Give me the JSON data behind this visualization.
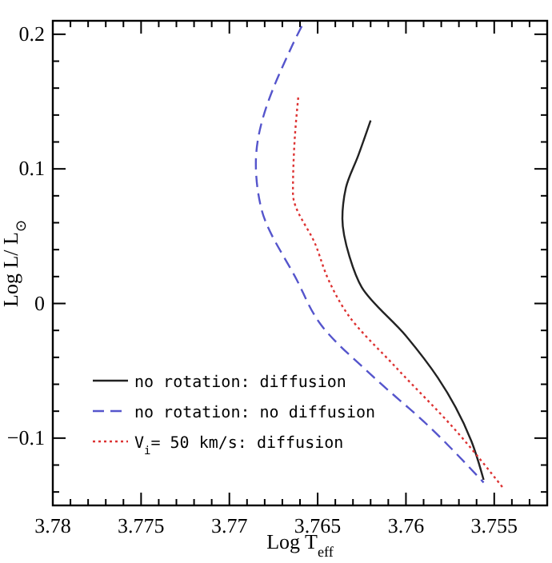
{
  "chart_data": {
    "type": "line",
    "xlabel": "Log T$_{eff}$",
    "ylabel": "Log L/ L$_{⊙}$",
    "xlim": [
      3.78,
      3.752
    ],
    "ylim": [
      -0.15,
      0.21
    ],
    "xticks": [
      3.78,
      {
        "value": 3.779,
        "label": null
      },
      {
        "value": 3.778,
        "label": null
      },
      {
        "value": 3.777,
        "label": null
      },
      {
        "value": 3.776,
        "label": null
      },
      3.775,
      {
        "value": 3.774,
        "label": null
      },
      {
        "value": 3.773,
        "label": null
      },
      {
        "value": 3.772,
        "label": null
      },
      {
        "value": 3.771,
        "label": null
      },
      3.77,
      {
        "value": 3.769,
        "label": null
      },
      {
        "value": 3.768,
        "label": null
      },
      {
        "value": 3.767,
        "label": null
      },
      {
        "value": 3.766,
        "label": null
      },
      3.765,
      {
        "value": 3.764,
        "label": null
      },
      {
        "value": 3.763,
        "label": null
      },
      {
        "value": 3.762,
        "label": null
      },
      {
        "value": 3.761,
        "label": null
      },
      3.76,
      {
        "value": 3.759,
        "label": null
      },
      {
        "value": 3.758,
        "label": null
      },
      {
        "value": 3.757,
        "label": null
      },
      {
        "value": 3.756,
        "label": null
      },
      3.755,
      {
        "value": 3.754,
        "label": null
      },
      {
        "value": 3.753,
        "label": null
      }
    ],
    "yticks": [
      {
        "value": -0.14,
        "label": null
      },
      {
        "value": -0.12,
        "label": null
      },
      -0.1,
      {
        "value": -0.08,
        "label": null
      },
      {
        "value": -0.06,
        "label": null
      },
      {
        "value": -0.04,
        "label": null
      },
      {
        "value": -0.02,
        "label": null
      },
      0,
      {
        "value": 0.02,
        "label": null
      },
      {
        "value": 0.04,
        "label": null
      },
      {
        "value": 0.06,
        "label": null
      },
      {
        "value": 0.08,
        "label": null
      },
      0.1,
      {
        "value": 0.12,
        "label": null
      },
      {
        "value": 0.14,
        "label": null
      },
      {
        "value": 0.16,
        "label": null
      },
      {
        "value": 0.18,
        "label": null
      },
      0.2
    ],
    "legend": "bottom left",
    "grid": false,
    "marker": "none",
    "series": [
      {
        "name": "no rotation: diffusion",
        "color": "#222222",
        "line_style": "solid",
        "x": [
          3.762,
          3.7627,
          3.7634,
          3.7636,
          3.7632,
          3.7625,
          3.76,
          3.7582,
          3.7563,
          3.7556
        ],
        "values": [
          0.136,
          0.11,
          0.086,
          0.063,
          0.035,
          0.012,
          -0.024,
          -0.055,
          -0.102,
          -0.131
        ]
      },
      {
        "name": "no rotation: no diffusion",
        "color": "#5555cc",
        "line_style": "dashed",
        "x": [
          3.7659,
          3.7665,
          3.7685,
          3.7682,
          3.7662,
          3.7648,
          3.7618,
          3.7588,
          3.7556
        ],
        "values": [
          0.206,
          0.19,
          0.104,
          0.071,
          0.018,
          -0.016,
          -0.055,
          -0.09,
          -0.133
        ]
      },
      {
        "name": "V$_{i}$= 50 km/s: diffusion",
        "color": "#dd3333",
        "line_style": "dotted",
        "x": [
          3.7661,
          3.7663,
          3.7664,
          3.7651,
          3.7644,
          3.7633,
          3.7606,
          3.7572,
          3.7545
        ],
        "values": [
          0.153,
          0.122,
          0.082,
          0.043,
          0.018,
          -0.008,
          -0.047,
          -0.094,
          -0.137
        ]
      }
    ]
  }
}
